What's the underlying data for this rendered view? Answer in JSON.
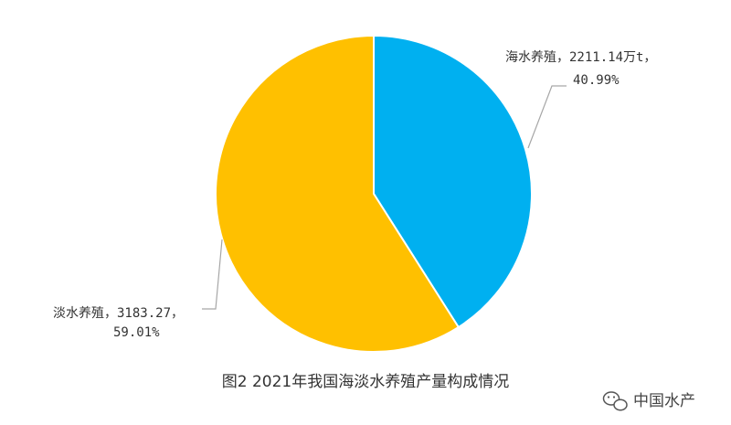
{
  "chart_data": {
    "type": "pie",
    "categories": [
      "海水养殖",
      "淡水养殖"
    ],
    "values": [
      2211.14,
      3183.27
    ],
    "percents": [
      "40.99%",
      "59.01%"
    ],
    "labels": [
      {
        "line1": "海水养殖，2211.14万t，",
        "line2": "40.99%"
      },
      {
        "line1": "淡水养殖，3183.27，",
        "line2": "59.01%"
      }
    ],
    "colors": [
      "#00B0F0",
      "#FFC000"
    ],
    "start_angle": "12 o'clock",
    "direction": "clockwise",
    "title": "图2 2021年我国海淡水养殖产量构成情况"
  },
  "watermark": {
    "text": "中国水产",
    "icon": "wechat-icon"
  }
}
